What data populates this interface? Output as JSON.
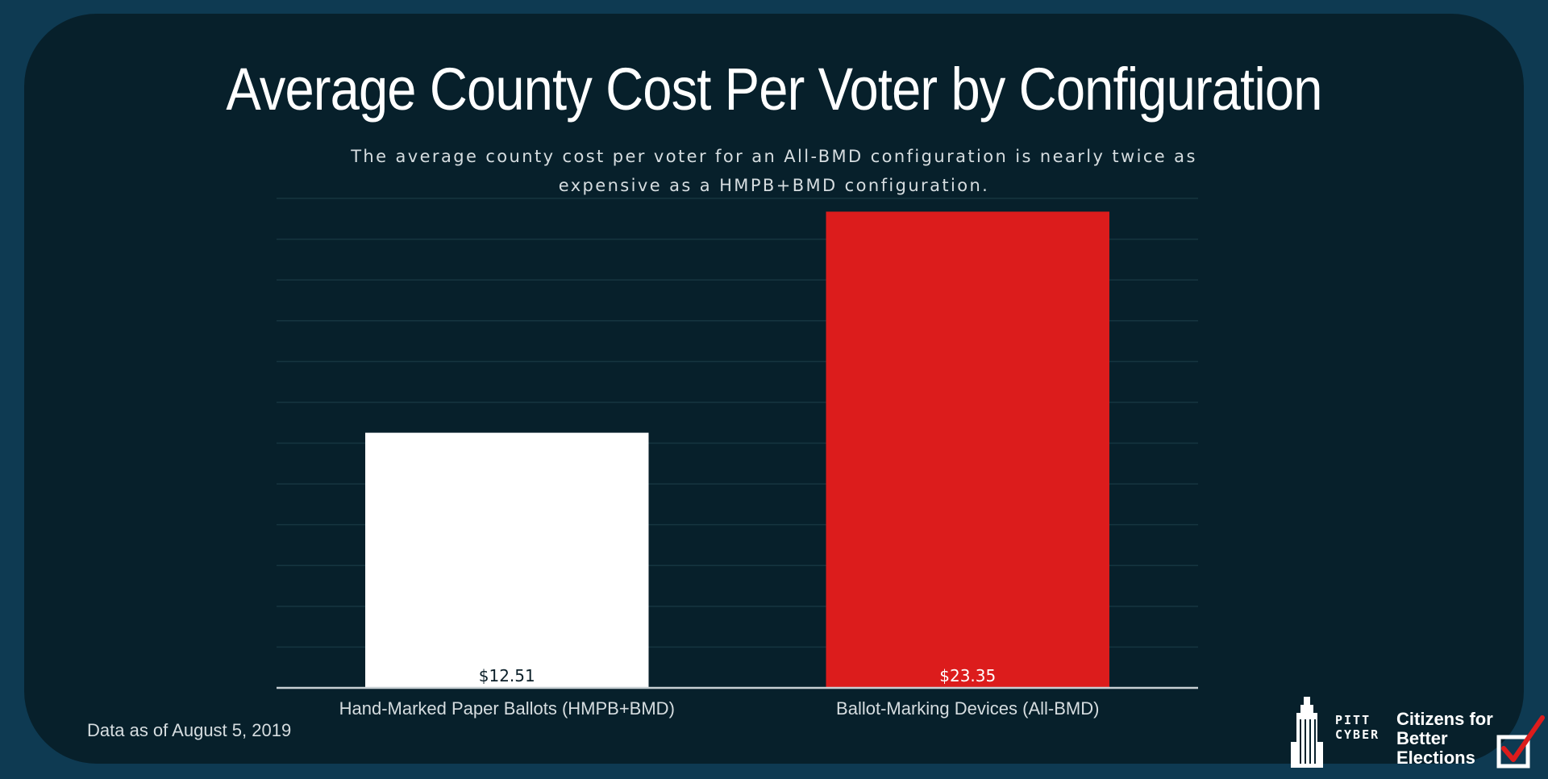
{
  "title": "Average County Cost Per Voter by Configuration",
  "subtitle": "The average county cost per voter for an All-BMD configuration is nearly twice as expensive as a HMPB+BMD configuration.",
  "footnote": "Data as of August 5, 2019",
  "logos": {
    "pitt_line1": "PITT",
    "pitt_line2": "CYBER",
    "cbe_line1": "Citizens for",
    "cbe_line2": "Better",
    "cbe_line3": "Elections"
  },
  "colors": {
    "background": "#07202b",
    "frame": "#0e3a52",
    "bar_hmpb": "#ffffff",
    "bar_bmd": "#dc1c1c",
    "gridline": "#163540",
    "axis": "#c8d0d4"
  },
  "chart_data": {
    "type": "bar",
    "categories": [
      "Hand-Marked Paper Ballots (HMPB+BMD)",
      "Ballot-Marking Devices (All-BMD)"
    ],
    "values": [
      12.51,
      23.35
    ],
    "value_labels": [
      "$12.51",
      "$23.35"
    ],
    "bar_colors": [
      "#ffffff",
      "#dc1c1c"
    ],
    "label_colors": [
      "#0b1f29",
      "#ffffff"
    ],
    "title": "Average County Cost Per Voter by Configuration",
    "xlabel": "",
    "ylabel": "",
    "ylim": [
      0,
      24
    ],
    "grid": true,
    "legend": "none"
  }
}
